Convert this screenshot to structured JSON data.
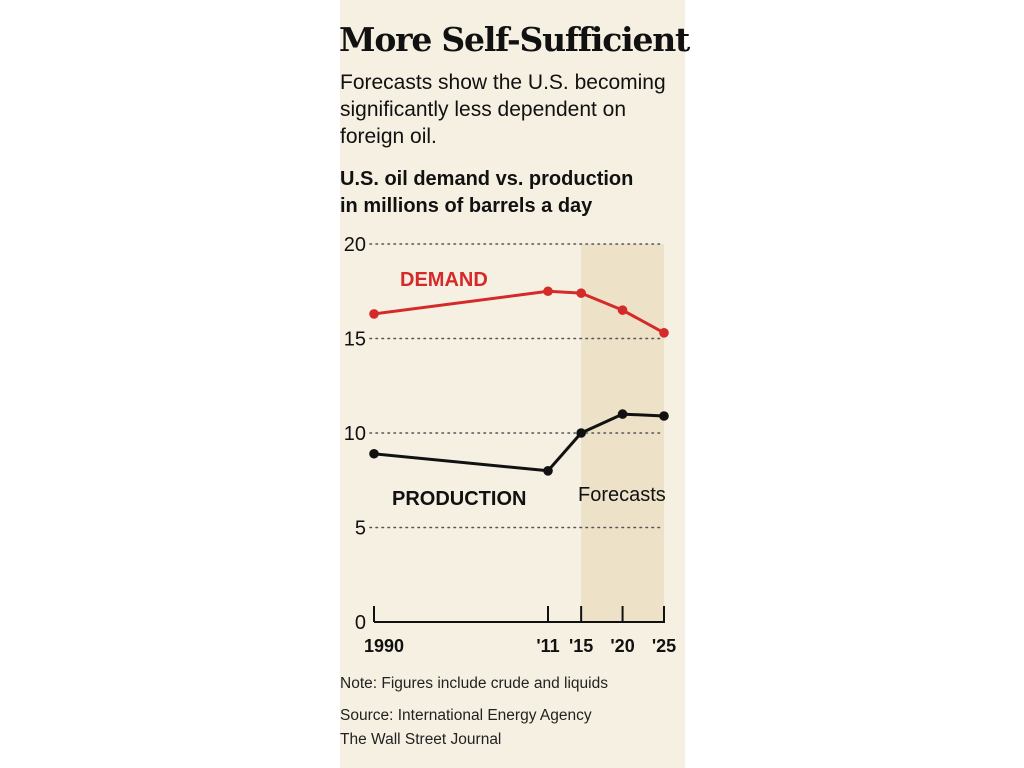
{
  "title": "More Self-Sufficient",
  "subtitle": "Forecasts show the U.S. becoming significantly less dependent on foreign oil.",
  "chart_heading_line1": "U.S. oil demand vs. production",
  "chart_heading_line2": "in millions of barrels a day",
  "note": "Note: Figures include crude and liquids",
  "source": "Source: International Energy Agency",
  "credit": "The Wall Street Journal",
  "colors": {
    "background": "#f6f0e3",
    "forecast_band": "#ede2c8",
    "demand": "#d42a2a",
    "production": "#111111"
  },
  "chart_data": {
    "type": "line",
    "title": "U.S. oil demand vs. production",
    "ylabel": "in millions of barrels a day",
    "ylim": [
      0,
      20
    ],
    "yticks": [
      0,
      5,
      10,
      15,
      20
    ],
    "x": [
      1990,
      2011,
      2015,
      2020,
      2025
    ],
    "xtick_labels": [
      "1990",
      "'11",
      "'15",
      "'20",
      "'25"
    ],
    "grid": "horizontal dotted",
    "series": [
      {
        "name": "DEMAND",
        "values": [
          16.3,
          17.5,
          17.4,
          16.5,
          15.3
        ]
      },
      {
        "name": "PRODUCTION",
        "values": [
          8.9,
          8.0,
          10.0,
          11.0,
          10.9
        ]
      }
    ],
    "shaded_region": {
      "label": "Forecasts",
      "x_start": 2015,
      "x_end": 2025
    }
  }
}
